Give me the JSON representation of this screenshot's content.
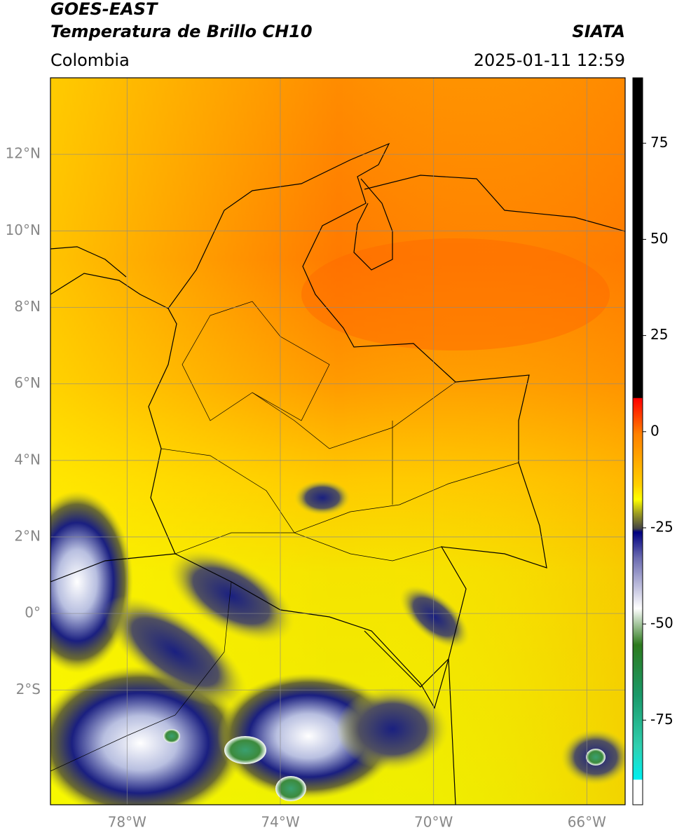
{
  "header": {
    "satellite": "GOES-EAST",
    "product": "Temperatura de Brillo CH10",
    "region": "Colombia",
    "source": "SIATA",
    "datetime": "2025-01-11 12:59"
  },
  "map": {
    "lonlim": [
      -80,
      -65
    ],
    "latlim": [
      -5,
      14
    ],
    "lat_ticks": [
      {
        "value": 12,
        "label": "12°N"
      },
      {
        "value": 10,
        "label": "10°N"
      },
      {
        "value": 8,
        "label": "8°N"
      },
      {
        "value": 6,
        "label": "6°N"
      },
      {
        "value": 4,
        "label": "4°N"
      },
      {
        "value": 2,
        "label": "2°N"
      },
      {
        "value": 0,
        "label": "0°"
      },
      {
        "value": -2,
        "label": "2°S"
      }
    ],
    "lon_ticks": [
      {
        "value": -78,
        "label": "78°W"
      },
      {
        "value": -74,
        "label": "74°W"
      },
      {
        "value": -70,
        "label": "70°W"
      },
      {
        "value": -66,
        "label": "66°W"
      }
    ]
  },
  "colorbar": {
    "lim": [
      -97,
      92
    ],
    "ticks": [
      75,
      50,
      25,
      0,
      -25,
      -50,
      -75
    ]
  }
}
